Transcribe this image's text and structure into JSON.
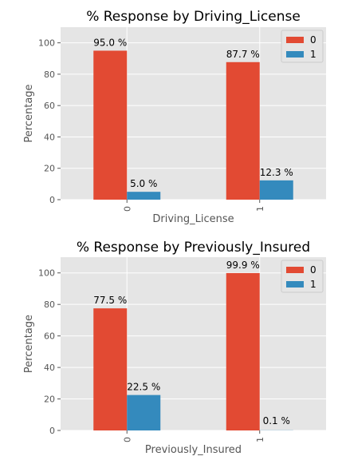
{
  "chart_data": [
    {
      "type": "bar",
      "title": "% Response by Driving_License",
      "xlabel": "Driving_License",
      "ylabel": "Percentage",
      "categories": [
        "0",
        "1"
      ],
      "series": [
        {
          "name": "0",
          "values": [
            95.0,
            87.7
          ],
          "color": "#E24A33",
          "labels": [
            "95.0 %",
            "87.7 %"
          ]
        },
        {
          "name": "1",
          "values": [
            5.0,
            12.3
          ],
          "color": "#348ABD",
          "labels": [
            "5.0 %",
            "12.3 %"
          ]
        }
      ],
      "ylim": [
        0,
        110
      ],
      "yticks": [
        "0",
        "20",
        "40",
        "60",
        "80",
        "100"
      ],
      "grid": true,
      "legend": "top-right",
      "background": "#E5E5E5"
    },
    {
      "type": "bar",
      "title": "% Response by Previously_Insured",
      "xlabel": "Previously_Insured",
      "ylabel": "Percentage",
      "categories": [
        "0",
        "1"
      ],
      "series": [
        {
          "name": "0",
          "values": [
            77.5,
            99.9
          ],
          "color": "#E24A33",
          "labels": [
            "77.5 %",
            "99.9 %"
          ]
        },
        {
          "name": "1",
          "values": [
            22.5,
            0.1
          ],
          "color": "#348ABD",
          "labels": [
            "22.5 %",
            "0.1 %"
          ]
        }
      ],
      "ylim": [
        0,
        110
      ],
      "yticks": [
        "0",
        "20",
        "40",
        "60",
        "80",
        "100"
      ],
      "grid": true,
      "legend": "top-right",
      "background": "#E5E5E5"
    }
  ]
}
